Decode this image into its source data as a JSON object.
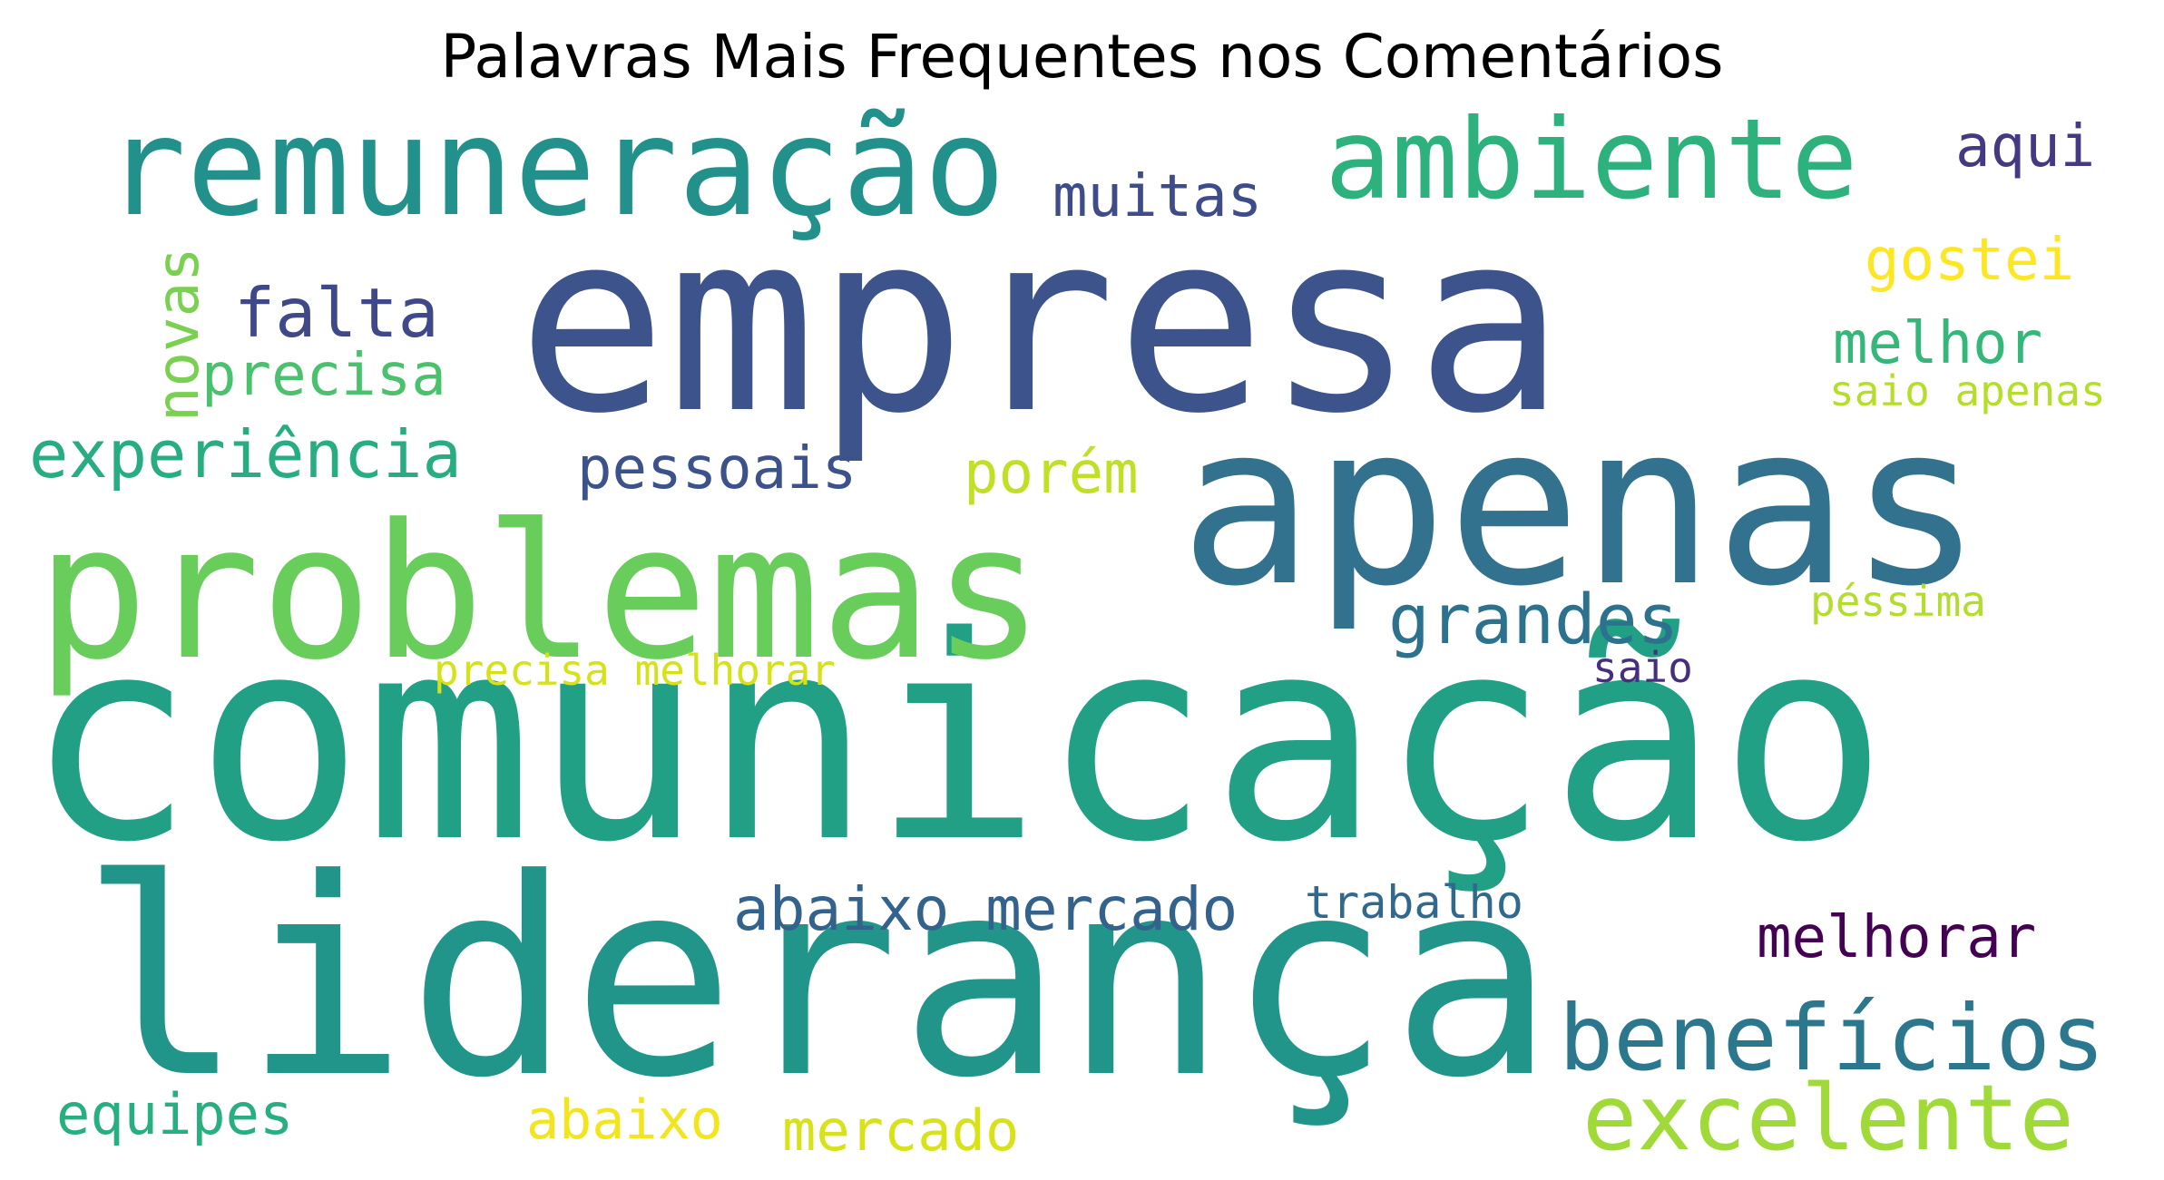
{
  "title": "Palavras Mais Frequentes nos Comentários",
  "palette": "viridis",
  "background_color": "#ffffff",
  "words": [
    {
      "text": "comunicação",
      "color": "#21a086"
    },
    {
      "text": "liderança",
      "color": "#22958b"
    },
    {
      "text": "empresa",
      "color": "#3d538b"
    },
    {
      "text": "apenas",
      "color": "#33728e"
    },
    {
      "text": "problemas",
      "color": "#69cd5b"
    },
    {
      "text": "remuneração",
      "color": "#22918c"
    },
    {
      "text": "ambiente",
      "color": "#2db27d"
    },
    {
      "text": "benefícios",
      "color": "#2b788e"
    },
    {
      "text": "excelente",
      "color": "#a0da39"
    },
    {
      "text": "experiência",
      "color": "#27ad81"
    },
    {
      "text": "grandes",
      "color": "#2c728e"
    },
    {
      "text": "abaixo mercado",
      "color": "#33638d"
    },
    {
      "text": "falta",
      "color": "#3f4889"
    },
    {
      "text": "precisa",
      "color": "#4ac16d"
    },
    {
      "text": "pessoais",
      "color": "#3b528b"
    },
    {
      "text": "porém",
      "color": "#c0df25"
    },
    {
      "text": "melhor",
      "color": "#35b779"
    },
    {
      "text": "gostei",
      "color": "#fde725"
    },
    {
      "text": "muitas",
      "color": "#3e4c8a"
    },
    {
      "text": "aqui",
      "color": "#443983"
    },
    {
      "text": "novas",
      "color": "#7ad151"
    },
    {
      "text": "melhorar",
      "color": "#440154"
    },
    {
      "text": "trabalho",
      "color": "#31688e"
    },
    {
      "text": "equipes",
      "color": "#29af7f"
    },
    {
      "text": "abaixo",
      "color": "#f2e51d"
    },
    {
      "text": "mercado",
      "color": "#d8e219"
    },
    {
      "text": "saio apenas",
      "color": "#b5de2b"
    },
    {
      "text": "péssima",
      "color": "#b2dd2d"
    },
    {
      "text": "precisa melhorar",
      "color": "#d5e21a"
    },
    {
      "text": "saio",
      "color": "#46307e"
    }
  ]
}
